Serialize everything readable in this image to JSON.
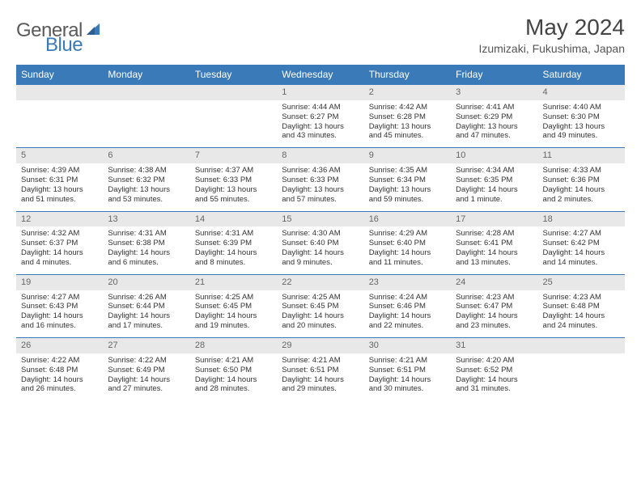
{
  "brand": {
    "text1": "General",
    "text2": "Blue"
  },
  "title": "May 2024",
  "location": "Izumizaki, Fukushima, Japan",
  "colors": {
    "header_bg": "#3a7ab8",
    "header_fg": "#ffffff",
    "daynum_bg": "#e8e8e8",
    "divider": "#3a7ab8"
  },
  "days": [
    "Sunday",
    "Monday",
    "Tuesday",
    "Wednesday",
    "Thursday",
    "Friday",
    "Saturday"
  ],
  "weeks": [
    [
      null,
      null,
      null,
      {
        "n": "1",
        "lines": [
          "Sunrise: 4:44 AM",
          "Sunset: 6:27 PM",
          "Daylight: 13 hours",
          "and 43 minutes."
        ]
      },
      {
        "n": "2",
        "lines": [
          "Sunrise: 4:42 AM",
          "Sunset: 6:28 PM",
          "Daylight: 13 hours",
          "and 45 minutes."
        ]
      },
      {
        "n": "3",
        "lines": [
          "Sunrise: 4:41 AM",
          "Sunset: 6:29 PM",
          "Daylight: 13 hours",
          "and 47 minutes."
        ]
      },
      {
        "n": "4",
        "lines": [
          "Sunrise: 4:40 AM",
          "Sunset: 6:30 PM",
          "Daylight: 13 hours",
          "and 49 minutes."
        ]
      }
    ],
    [
      {
        "n": "5",
        "lines": [
          "Sunrise: 4:39 AM",
          "Sunset: 6:31 PM",
          "Daylight: 13 hours",
          "and 51 minutes."
        ]
      },
      {
        "n": "6",
        "lines": [
          "Sunrise: 4:38 AM",
          "Sunset: 6:32 PM",
          "Daylight: 13 hours",
          "and 53 minutes."
        ]
      },
      {
        "n": "7",
        "lines": [
          "Sunrise: 4:37 AM",
          "Sunset: 6:33 PM",
          "Daylight: 13 hours",
          "and 55 minutes."
        ]
      },
      {
        "n": "8",
        "lines": [
          "Sunrise: 4:36 AM",
          "Sunset: 6:33 PM",
          "Daylight: 13 hours",
          "and 57 minutes."
        ]
      },
      {
        "n": "9",
        "lines": [
          "Sunrise: 4:35 AM",
          "Sunset: 6:34 PM",
          "Daylight: 13 hours",
          "and 59 minutes."
        ]
      },
      {
        "n": "10",
        "lines": [
          "Sunrise: 4:34 AM",
          "Sunset: 6:35 PM",
          "Daylight: 14 hours",
          "and 1 minute."
        ]
      },
      {
        "n": "11",
        "lines": [
          "Sunrise: 4:33 AM",
          "Sunset: 6:36 PM",
          "Daylight: 14 hours",
          "and 2 minutes."
        ]
      }
    ],
    [
      {
        "n": "12",
        "lines": [
          "Sunrise: 4:32 AM",
          "Sunset: 6:37 PM",
          "Daylight: 14 hours",
          "and 4 minutes."
        ]
      },
      {
        "n": "13",
        "lines": [
          "Sunrise: 4:31 AM",
          "Sunset: 6:38 PM",
          "Daylight: 14 hours",
          "and 6 minutes."
        ]
      },
      {
        "n": "14",
        "lines": [
          "Sunrise: 4:31 AM",
          "Sunset: 6:39 PM",
          "Daylight: 14 hours",
          "and 8 minutes."
        ]
      },
      {
        "n": "15",
        "lines": [
          "Sunrise: 4:30 AM",
          "Sunset: 6:40 PM",
          "Daylight: 14 hours",
          "and 9 minutes."
        ]
      },
      {
        "n": "16",
        "lines": [
          "Sunrise: 4:29 AM",
          "Sunset: 6:40 PM",
          "Daylight: 14 hours",
          "and 11 minutes."
        ]
      },
      {
        "n": "17",
        "lines": [
          "Sunrise: 4:28 AM",
          "Sunset: 6:41 PM",
          "Daylight: 14 hours",
          "and 13 minutes."
        ]
      },
      {
        "n": "18",
        "lines": [
          "Sunrise: 4:27 AM",
          "Sunset: 6:42 PM",
          "Daylight: 14 hours",
          "and 14 minutes."
        ]
      }
    ],
    [
      {
        "n": "19",
        "lines": [
          "Sunrise: 4:27 AM",
          "Sunset: 6:43 PM",
          "Daylight: 14 hours",
          "and 16 minutes."
        ]
      },
      {
        "n": "20",
        "lines": [
          "Sunrise: 4:26 AM",
          "Sunset: 6:44 PM",
          "Daylight: 14 hours",
          "and 17 minutes."
        ]
      },
      {
        "n": "21",
        "lines": [
          "Sunrise: 4:25 AM",
          "Sunset: 6:45 PM",
          "Daylight: 14 hours",
          "and 19 minutes."
        ]
      },
      {
        "n": "22",
        "lines": [
          "Sunrise: 4:25 AM",
          "Sunset: 6:45 PM",
          "Daylight: 14 hours",
          "and 20 minutes."
        ]
      },
      {
        "n": "23",
        "lines": [
          "Sunrise: 4:24 AM",
          "Sunset: 6:46 PM",
          "Daylight: 14 hours",
          "and 22 minutes."
        ]
      },
      {
        "n": "24",
        "lines": [
          "Sunrise: 4:23 AM",
          "Sunset: 6:47 PM",
          "Daylight: 14 hours",
          "and 23 minutes."
        ]
      },
      {
        "n": "25",
        "lines": [
          "Sunrise: 4:23 AM",
          "Sunset: 6:48 PM",
          "Daylight: 14 hours",
          "and 24 minutes."
        ]
      }
    ],
    [
      {
        "n": "26",
        "lines": [
          "Sunrise: 4:22 AM",
          "Sunset: 6:48 PM",
          "Daylight: 14 hours",
          "and 26 minutes."
        ]
      },
      {
        "n": "27",
        "lines": [
          "Sunrise: 4:22 AM",
          "Sunset: 6:49 PM",
          "Daylight: 14 hours",
          "and 27 minutes."
        ]
      },
      {
        "n": "28",
        "lines": [
          "Sunrise: 4:21 AM",
          "Sunset: 6:50 PM",
          "Daylight: 14 hours",
          "and 28 minutes."
        ]
      },
      {
        "n": "29",
        "lines": [
          "Sunrise: 4:21 AM",
          "Sunset: 6:51 PM",
          "Daylight: 14 hours",
          "and 29 minutes."
        ]
      },
      {
        "n": "30",
        "lines": [
          "Sunrise: 4:21 AM",
          "Sunset: 6:51 PM",
          "Daylight: 14 hours",
          "and 30 minutes."
        ]
      },
      {
        "n": "31",
        "lines": [
          "Sunrise: 4:20 AM",
          "Sunset: 6:52 PM",
          "Daylight: 14 hours",
          "and 31 minutes."
        ]
      },
      null
    ]
  ]
}
